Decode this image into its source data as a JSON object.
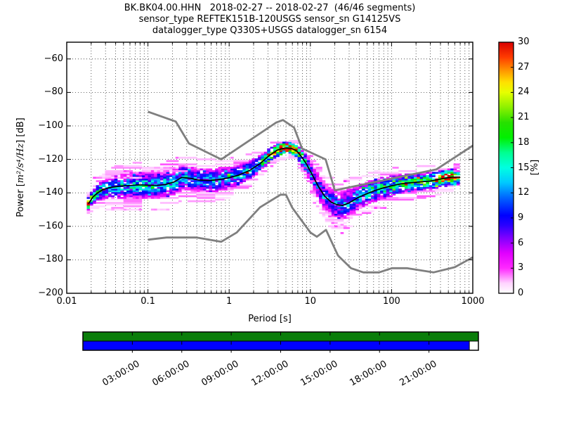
{
  "chart_data": {
    "type": "heatmap",
    "title_lines": [
      "BK.BK04.00.HHN   2018-02-27 -- 2018-02-27  (46/46 segments)",
      "sensor_type REFTEK151B-120USGS sensor_sn G14125VS",
      "datalogger_type Q330S+USGS datalogger_sn 6154"
    ],
    "xlabel": "Period [s]",
    "ylabel": {
      "prefix": "Power [",
      "math": "m²/s⁴/Hz",
      "suffix": "] [dB]"
    },
    "x_scale": "log",
    "xlim": [
      0.01,
      1000
    ],
    "ylim": [
      -200,
      -50
    ],
    "grid": true,
    "x_ticks": [
      {
        "v": 0.01,
        "label": "0.01"
      },
      {
        "v": 0.1,
        "label": "0.1"
      },
      {
        "v": 1,
        "label": "1"
      },
      {
        "v": 10,
        "label": "10"
      },
      {
        "v": 100,
        "label": "100"
      },
      {
        "v": 1000,
        "label": "1000"
      }
    ],
    "y_ticks": [
      {
        "v": -60,
        "label": "−60"
      },
      {
        "v": -80,
        "label": "−80"
      },
      {
        "v": -100,
        "label": "−100"
      },
      {
        "v": -120,
        "label": "−120"
      },
      {
        "v": -140,
        "label": "−140"
      },
      {
        "v": -160,
        "label": "−160"
      },
      {
        "v": -180,
        "label": "−180"
      },
      {
        "v": -200,
        "label": "−200"
      }
    ],
    "colorbar": {
      "label": "[%]",
      "min": 0,
      "max": 30,
      "ticks": [
        {
          "v": 0,
          "label": "0"
        },
        {
          "v": 3,
          "label": "3"
        },
        {
          "v": 6,
          "label": "6"
        },
        {
          "v": 9,
          "label": "9"
        },
        {
          "v": 12,
          "label": "12"
        },
        {
          "v": 15,
          "label": "15"
        },
        {
          "v": 18,
          "label": "18"
        },
        {
          "v": 21,
          "label": "21"
        },
        {
          "v": 24,
          "label": "24"
        },
        {
          "v": 27,
          "label": "27"
        },
        {
          "v": 30,
          "label": "30"
        }
      ],
      "cmap_stops": [
        [
          0.0,
          "#ffffff"
        ],
        [
          0.04,
          "#ffd4ff"
        ],
        [
          0.1,
          "#ff29ff"
        ],
        [
          0.16,
          "#e000ff"
        ],
        [
          0.22,
          "#8000ff"
        ],
        [
          0.27,
          "#2b00ff"
        ],
        [
          0.31,
          "#0000ff"
        ],
        [
          0.38,
          "#0064ff"
        ],
        [
          0.44,
          "#00c8ff"
        ],
        [
          0.5,
          "#00ffe1"
        ],
        [
          0.56,
          "#00ff91"
        ],
        [
          0.62,
          "#00f000"
        ],
        [
          0.68,
          "#27e000"
        ],
        [
          0.74,
          "#8cf000"
        ],
        [
          0.8,
          "#e6ff00"
        ],
        [
          0.84,
          "#ffe100"
        ],
        [
          0.89,
          "#ff9100"
        ],
        [
          0.94,
          "#ff3c00"
        ],
        [
          1.0,
          "#d90000"
        ]
      ]
    },
    "noise_models": {
      "color": "#7f7f7f",
      "high": [
        [
          0.1,
          -91.5
        ],
        [
          0.22,
          -97.4
        ],
        [
          0.32,
          -110.5
        ],
        [
          0.8,
          -120.0
        ],
        [
          3.8,
          -98.0
        ],
        [
          4.6,
          -96.5
        ],
        [
          6.3,
          -101.0
        ],
        [
          7.9,
          -113.5
        ],
        [
          15.4,
          -120.0
        ],
        [
          20.0,
          -138.5
        ],
        [
          354.8,
          -126.0
        ],
        [
          1000,
          -111.8
        ]
      ],
      "low": [
        [
          0.1,
          -168.0
        ],
        [
          0.17,
          -166.7
        ],
        [
          0.4,
          -166.7
        ],
        [
          0.8,
          -169.2
        ],
        [
          1.24,
          -163.7
        ],
        [
          2.4,
          -148.6
        ],
        [
          4.3,
          -141.1
        ],
        [
          5.0,
          -141.1
        ],
        [
          6.0,
          -149.0
        ],
        [
          10.0,
          -163.7
        ],
        [
          12.0,
          -166.2
        ],
        [
          15.6,
          -162.1
        ],
        [
          21.9,
          -177.5
        ],
        [
          31.6,
          -185.0
        ],
        [
          45.0,
          -187.5
        ],
        [
          70.0,
          -187.5
        ],
        [
          101.0,
          -185.0
        ],
        [
          154.0,
          -185.0
        ],
        [
          328.0,
          -187.5
        ],
        [
          600.0,
          -184.4
        ],
        [
          1000,
          -178.5
        ]
      ]
    },
    "mode_line": {
      "color": "#000000",
      "points": [
        [
          0.0185,
          -146.5
        ],
        [
          0.021,
          -142.5
        ],
        [
          0.024,
          -140.0
        ],
        [
          0.028,
          -138.0
        ],
        [
          0.034,
          -136.8
        ],
        [
          0.045,
          -136.0
        ],
        [
          0.06,
          -135.6
        ],
        [
          0.08,
          -135.2
        ],
        [
          0.1,
          -135.4
        ],
        [
          0.13,
          -135.6
        ],
        [
          0.165,
          -135.0
        ],
        [
          0.21,
          -133.5
        ],
        [
          0.26,
          -130.8
        ],
        [
          0.33,
          -131.3
        ],
        [
          0.42,
          -132.3
        ],
        [
          0.55,
          -132.6
        ],
        [
          0.72,
          -132.2
        ],
        [
          0.95,
          -131.2
        ],
        [
          1.3,
          -129.5
        ],
        [
          1.8,
          -126.5
        ],
        [
          2.4,
          -122.5
        ],
        [
          3.1,
          -117.8
        ],
        [
          3.9,
          -114.5
        ],
        [
          4.8,
          -113.2
        ],
        [
          5.8,
          -113.4
        ],
        [
          6.8,
          -115.0
        ],
        [
          7.8,
          -118.5
        ],
        [
          9.0,
          -123.0
        ],
        [
          10.5,
          -129.0
        ],
        [
          12.5,
          -136.0
        ],
        [
          15.0,
          -142.0
        ],
        [
          18.0,
          -145.5
        ],
        [
          21.0,
          -147.0
        ],
        [
          25.0,
          -147.5
        ],
        [
          30.0,
          -146.0
        ],
        [
          38.0,
          -143.0
        ],
        [
          48.0,
          -140.8
        ],
        [
          62.0,
          -138.6
        ],
        [
          80.0,
          -137.0
        ],
        [
          100.0,
          -135.8
        ],
        [
          130.0,
          -134.6
        ],
        [
          170.0,
          -134.0
        ],
        [
          230.0,
          -133.4
        ],
        [
          300.0,
          -133.0
        ],
        [
          380.0,
          -132.0
        ],
        [
          460.0,
          -131.2
        ],
        [
          560.0,
          -130.6
        ],
        [
          700.0,
          -130.6
        ]
      ]
    },
    "histogram": {
      "p_min": 0.0185,
      "p_max": 700,
      "octave_step": 0.125,
      "db_bin": 1,
      "center_prob": [
        [
          0.0185,
          26
        ],
        [
          0.022,
          16
        ],
        [
          0.03,
          12
        ],
        [
          0.05,
          12
        ],
        [
          0.09,
          13
        ],
        [
          0.15,
          11
        ],
        [
          0.26,
          13
        ],
        [
          0.4,
          10
        ],
        [
          0.6,
          11
        ],
        [
          1,
          11
        ],
        [
          1.8,
          13
        ],
        [
          2.6,
          16
        ],
        [
          3.4,
          22
        ],
        [
          4.2,
          28
        ],
        [
          5.2,
          30
        ],
        [
          6.2,
          27
        ],
        [
          7.2,
          22
        ],
        [
          8.5,
          14
        ],
        [
          10,
          10
        ],
        [
          13,
          9
        ],
        [
          18,
          9.5
        ],
        [
          25,
          10
        ],
        [
          33,
          11
        ],
        [
          45,
          12
        ],
        [
          60,
          13.5
        ],
        [
          85,
          15
        ],
        [
          120,
          16
        ],
        [
          180,
          16
        ],
        [
          260,
          17
        ],
        [
          340,
          20
        ],
        [
          420,
          27
        ],
        [
          520,
          28
        ],
        [
          620,
          22
        ],
        [
          700,
          18
        ]
      ],
      "sigma": [
        [
          0.0185,
          2.2
        ],
        [
          0.025,
          3.0
        ],
        [
          0.04,
          4.2
        ],
        [
          0.08,
          4.6
        ],
        [
          0.2,
          4.6
        ],
        [
          0.35,
          4.4
        ],
        [
          0.7,
          4.2
        ],
        [
          1.5,
          3.6
        ],
        [
          2.5,
          2.8
        ],
        [
          4,
          2.2
        ],
        [
          5.5,
          2.0
        ],
        [
          7,
          2.4
        ],
        [
          9,
          3.4
        ],
        [
          12,
          4.4
        ],
        [
          18,
          5.0
        ],
        [
          28,
          5.0
        ],
        [
          40,
          4.4
        ],
        [
          60,
          4.0
        ],
        [
          100,
          3.6
        ],
        [
          200,
          3.2
        ],
        [
          400,
          3.0
        ],
        [
          700,
          2.8
        ]
      ],
      "lower_lobe": {
        "p_min": 11,
        "p_max": 46,
        "peak_p": 23,
        "points": [
          [
            11,
            -145
          ],
          [
            13,
            -149
          ],
          [
            16,
            -153
          ],
          [
            20,
            -157
          ],
          [
            25,
            -161
          ],
          [
            29,
            -157
          ],
          [
            34,
            -152
          ],
          [
            40,
            -148
          ],
          [
            46,
            -145
          ]
        ]
      },
      "streaks": [
        {
          "p1": 0.05,
          "p2": 0.36,
          "db": -127,
          "v": 2.0
        },
        {
          "p1": 0.12,
          "p2": 0.34,
          "db": -125,
          "v": 1.5
        },
        {
          "p1": 0.022,
          "p2": 0.09,
          "db": -131,
          "v": 2.0
        },
        {
          "p1": 0.03,
          "p2": 0.2,
          "db": -150,
          "v": 1.5
        },
        {
          "p1": 9,
          "p2": 30,
          "db": -133,
          "v": 2.5
        },
        {
          "p1": 12,
          "p2": 26,
          "db": -131,
          "v": 1.5
        },
        {
          "p1": 35,
          "p2": 90,
          "db": -149,
          "v": 2.0
        },
        {
          "p1": 150,
          "p2": 260,
          "db": -140,
          "v": 2.0
        },
        {
          "p1": 300,
          "p2": 700,
          "db": -127,
          "v": 2.5
        }
      ]
    },
    "timeline": {
      "hours_total": 24,
      "top_bar": {
        "color": "#0a7d0a",
        "start_hour": 0,
        "end_hour": 24
      },
      "bottom_bar": {
        "color": "#0000ff",
        "start_hour": 0,
        "end_hour": 23.45
      },
      "tick_hours": [
        3,
        6,
        9,
        12,
        15,
        18,
        21
      ],
      "tick_labels": [
        {
          "h": 3,
          "label": "03:00:00"
        },
        {
          "h": 6,
          "label": "06:00:00"
        },
        {
          "h": 9,
          "label": "09:00:00"
        },
        {
          "h": 12,
          "label": "12:00:00"
        },
        {
          "h": 15,
          "label": "15:00:00"
        },
        {
          "h": 18,
          "label": "18:00:00"
        },
        {
          "h": 21,
          "label": "21:00:00"
        }
      ]
    }
  }
}
